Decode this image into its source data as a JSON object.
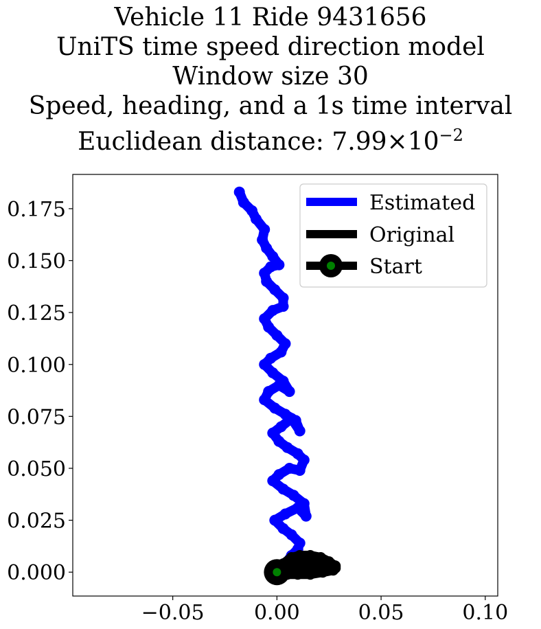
{
  "title": {
    "line1": "Vehicle 11 Ride 9431656",
    "line2": "UniTS time speed direction model",
    "line3": "Window size 30",
    "line4": "Speed, heading, and a 1s time interval",
    "line5_prefix": "Euclidean distance: 7.99",
    "line5_times": "×",
    "line5_base": "10",
    "line5_exp": "−2"
  },
  "chart_data": {
    "type": "line",
    "title": "Vehicle 11 Ride 9431656 UniTS time speed direction model Window size 30 Speed, heading, and a 1s time interval Euclidean distance: 7.99×10^-2",
    "xlabel": "",
    "ylabel": "",
    "xlim": [
      -0.098,
      0.106
    ],
    "ylim": [
      -0.0115,
      0.1915
    ],
    "xticks": [
      -0.05,
      0.0,
      0.05,
      0.1
    ],
    "xtick_labels": [
      "−0.05",
      "0.00",
      "0.05",
      "0.10"
    ],
    "yticks": [
      0.0,
      0.025,
      0.05,
      0.075,
      0.1,
      0.125,
      0.15,
      0.175
    ],
    "ytick_labels": [
      "0.000",
      "0.025",
      "0.050",
      "0.075",
      "0.100",
      "0.125",
      "0.150",
      "0.175"
    ],
    "grid": false,
    "legend_position": "top-right",
    "series": [
      {
        "name": "Estimated",
        "color": "#0000ff",
        "x": [
          0.0,
          0.004,
          0.007,
          0.01,
          0.011,
          0.007,
          0.003,
          -0.001,
          0.004,
          0.01,
          0.014,
          0.013,
          0.008,
          0.003,
          -0.002,
          0.001,
          0.006,
          0.011,
          0.013,
          0.01,
          0.005,
          0.001,
          -0.002,
          0.002,
          0.007,
          0.011,
          0.009,
          0.004,
          -0.001,
          -0.006,
          -0.004,
          0.001,
          0.006,
          0.003,
          -0.002,
          -0.006,
          -0.003,
          0.002,
          0.004,
          0.0,
          -0.004,
          -0.006,
          -0.002,
          0.003,
          0.003,
          -0.001,
          -0.005,
          -0.006,
          -0.003,
          0.001,
          -0.002,
          -0.005,
          -0.007,
          -0.006,
          -0.01,
          -0.012,
          -0.016,
          -0.018
        ],
        "y": [
          0.0,
          0.004,
          0.008,
          0.011,
          0.014,
          0.018,
          0.021,
          0.025,
          0.028,
          0.031,
          0.027,
          0.033,
          0.037,
          0.04,
          0.044,
          0.047,
          0.05,
          0.049,
          0.054,
          0.057,
          0.06,
          0.063,
          0.067,
          0.07,
          0.074,
          0.068,
          0.073,
          0.076,
          0.079,
          0.083,
          0.087,
          0.09,
          0.087,
          0.092,
          0.096,
          0.1,
          0.103,
          0.106,
          0.11,
          0.114,
          0.118,
          0.122,
          0.126,
          0.128,
          0.132,
          0.136,
          0.14,
          0.144,
          0.147,
          0.148,
          0.152,
          0.156,
          0.16,
          0.165,
          0.17,
          0.174,
          0.178,
          0.183
        ]
      },
      {
        "name": "Original",
        "color": "#000000",
        "x": [
          0.0,
          0.003,
          0.007,
          0.011,
          0.016,
          0.021,
          0.025,
          0.028,
          0.027,
          0.022,
          0.016,
          0.01,
          0.005,
          0.002,
          0.005,
          0.011,
          0.017,
          0.023,
          0.028,
          0.025,
          0.018,
          0.012,
          0.006,
          0.001,
          0.0
        ],
        "y": [
          0.0,
          0.004,
          0.007,
          0.008,
          0.008,
          0.007,
          0.005,
          0.003,
          0.001,
          0.0,
          -0.001,
          -0.001,
          -0.001,
          0.0,
          0.002,
          0.003,
          0.003,
          0.002,
          0.002,
          0.003,
          0.004,
          0.005,
          0.003,
          0.001,
          0.0
        ]
      }
    ],
    "start": {
      "name": "Start",
      "x": 0.0,
      "y": 0.0,
      "color": "#000000",
      "marker_face": "#008000"
    }
  },
  "legend": {
    "estimated": "Estimated",
    "original": "Original",
    "start": "Start"
  }
}
